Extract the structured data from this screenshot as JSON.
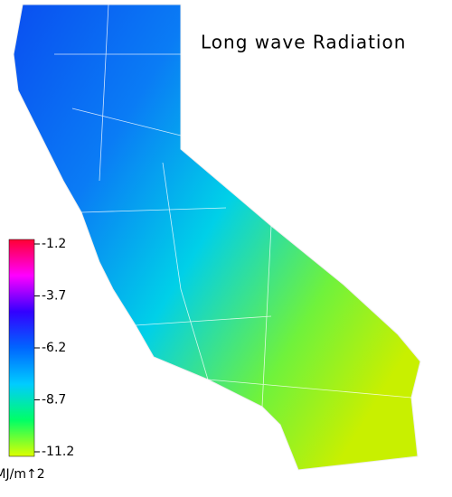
{
  "title": "Long wave Radiation",
  "colorbar": {
    "lim": [
      -1.2,
      -11.2
    ],
    "ticks": [
      -1.2,
      -3.7,
      -6.2,
      -8.7,
      -11.2
    ],
    "colors": [
      "#ff0033",
      "#ff00ff",
      "#3300ff",
      "#0066ff",
      "#00ccff",
      "#00ff66",
      "#ddff00"
    ],
    "unit": "MJ/m↑2"
  }
}
